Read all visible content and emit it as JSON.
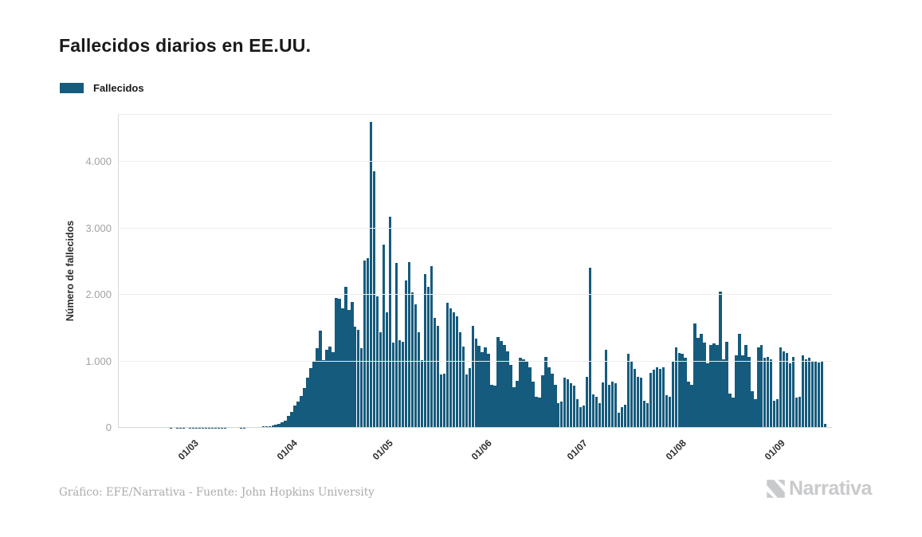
{
  "title": "Fallecidos diarios en EE.UU.",
  "legend": {
    "label": "Fallecidos"
  },
  "y_axis": {
    "title": "Número de fallecidos",
    "tick_labels": [
      "0",
      "1.000",
      "2.000",
      "3.000",
      "4.000"
    ]
  },
  "x_axis": {
    "tick_labels": [
      "01/03",
      "01/04",
      "01/05",
      "01/06",
      "01/07",
      "01/08",
      "01/09"
    ]
  },
  "footer": {
    "credit": "Gráfico: EFE/Narrativa - Fuente: John Hopkins University",
    "brand": "Narrativa"
  },
  "colors": {
    "bar": "#155b7d",
    "title_text": "#191919",
    "axis_text": "#a2a2a2",
    "x_tick_text": "#2e2e2e",
    "credit_text": "#ababab",
    "brand_gray": "#c8cacc"
  },
  "chart_data": {
    "type": "bar",
    "title": "Fallecidos diarios en EE.UU.",
    "xlabel": "",
    "ylabel": "Número de fallecidos",
    "ylim": [
      0,
      4724
    ],
    "y_ticks": [
      0,
      1000,
      2000,
      3000,
      4000
    ],
    "x_tick_labels": [
      "01/03",
      "01/04",
      "01/05",
      "01/06",
      "01/07",
      "01/08",
      "01/09"
    ],
    "x_tick_indices": [
      15,
      46,
      76,
      107,
      137,
      168,
      199
    ],
    "grid": true,
    "legend_position": "top-left",
    "note": "daily values, one bar per day from mid-February to early September 2020",
    "series": [
      {
        "name": "Fallecidos",
        "values": [
          1,
          0,
          1,
          1,
          1,
          0,
          1,
          1,
          1,
          1,
          2,
          2,
          2,
          3,
          4,
          5,
          6,
          6,
          7,
          7,
          8,
          8,
          6,
          5,
          7,
          9,
          10,
          12,
          15,
          20,
          24,
          30,
          40,
          52,
          65,
          85,
          110,
          180,
          240,
          330,
          400,
          480,
          600,
          760,
          900,
          1000,
          1200,
          1460,
          1020,
          1180,
          1220,
          1140,
          1960,
          1940,
          1800,
          2120,
          1780,
          1900,
          1520,
          1480,
          1200,
          2520,
          2560,
          4600,
          3860,
          1980,
          1440,
          2760,
          1740,
          3180,
          1280,
          2480,
          1320,
          1300,
          2220,
          2500,
          2040,
          1860,
          1440,
          1020,
          2320,
          2120,
          2440,
          1660,
          1540,
          800,
          820,
          1880,
          1800,
          1740,
          1680,
          1440,
          1220,
          800,
          900,
          1540,
          1340,
          1240,
          1140,
          1210,
          1110,
          650,
          630,
          1370,
          1310,
          1250,
          1150,
          950,
          610,
          710,
          1050,
          1030,
          1010,
          910,
          690,
          470,
          450,
          790,
          1070,
          910,
          810,
          650,
          370,
          390,
          750,
          730,
          670,
          630,
          430,
          310,
          330,
          770,
          2410,
          500,
          470,
          370,
          680,
          1180,
          650,
          690,
          670,
          230,
          310,
          350,
          1110,
          1010,
          890,
          770,
          750,
          410,
          370,
          830,
          870,
          910,
          890,
          910,
          490,
          470,
          990,
          1210,
          1130,
          1110,
          1050,
          690,
          650,
          1570,
          1350,
          1410,
          1280,
          970,
          1250,
          1270,
          1250,
          2050,
          1030,
          1290,
          510,
          450,
          1090,
          1410,
          1090,
          1250,
          1070,
          550,
          430,
          1210,
          1250,
          1050,
          1070,
          1030,
          410,
          430,
          1210,
          1150,
          1130,
          970,
          1070,
          450,
          470,
          1090,
          1030,
          1050,
          990,
          1010,
          980,
          1000,
          60
        ]
      }
    ]
  }
}
